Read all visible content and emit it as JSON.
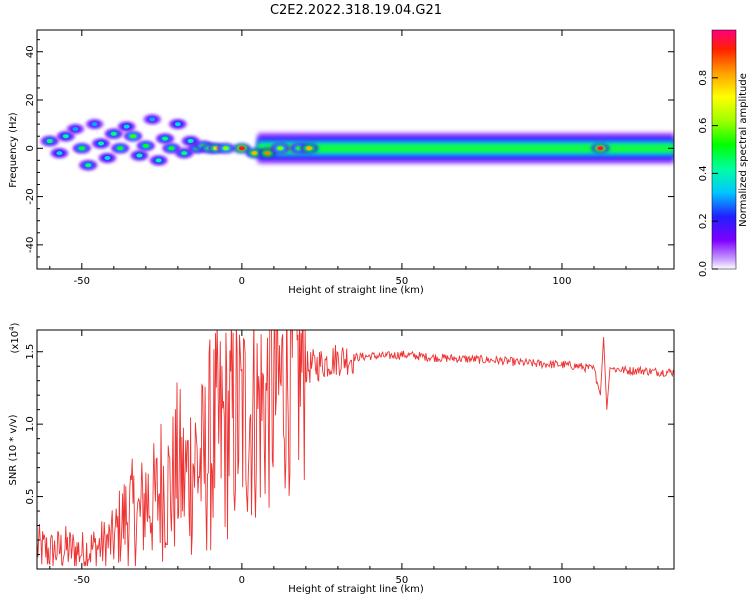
{
  "title": "C2E2.2022.318.19.04.G21",
  "chart_data": [
    {
      "type": "heatmap",
      "xlabel": "Height of straight line (km)",
      "ylabel": "Frequency (Hz)",
      "xlim": [
        -64,
        135
      ],
      "ylim": [
        -50,
        49
      ],
      "xticks": [
        -50,
        0,
        50,
        100
      ],
      "yticks": [
        -40,
        -20,
        0,
        20,
        40
      ],
      "colorbar": {
        "label": "Normalized spectral amplitude",
        "range": [
          0,
          1
        ],
        "ticks": [
          0.0,
          0.2,
          0.4,
          0.6,
          0.8
        ],
        "colormap": "rainbow"
      },
      "blobs": [
        {
          "x": -60,
          "y": 3,
          "v": 0.45
        },
        {
          "x": -57,
          "y": -2,
          "v": 0.35
        },
        {
          "x": -55,
          "y": 5,
          "v": 0.4
        },
        {
          "x": -52,
          "y": 8,
          "v": 0.3
        },
        {
          "x": -50,
          "y": 0,
          "v": 0.5
        },
        {
          "x": -48,
          "y": -7,
          "v": 0.45
        },
        {
          "x": -46,
          "y": 10,
          "v": 0.3
        },
        {
          "x": -44,
          "y": 2,
          "v": 0.4
        },
        {
          "x": -42,
          "y": -4,
          "v": 0.35
        },
        {
          "x": -40,
          "y": 6,
          "v": 0.45
        },
        {
          "x": -38,
          "y": 0,
          "v": 0.5
        },
        {
          "x": -36,
          "y": 9,
          "v": 0.35
        },
        {
          "x": -34,
          "y": 5,
          "v": 0.55
        },
        {
          "x": -32,
          "y": -3,
          "v": 0.4
        },
        {
          "x": -30,
          "y": 1,
          "v": 0.5
        },
        {
          "x": -28,
          "y": 12,
          "v": 0.3
        },
        {
          "x": -26,
          "y": -5,
          "v": 0.4
        },
        {
          "x": -24,
          "y": 4,
          "v": 0.45
        },
        {
          "x": -22,
          "y": 0,
          "v": 0.5
        },
        {
          "x": -20,
          "y": 10,
          "v": 0.35
        },
        {
          "x": -18,
          "y": -2,
          "v": 0.45
        },
        {
          "x": -16,
          "y": 3,
          "v": 0.4
        },
        {
          "x": -14,
          "y": 0,
          "v": 0.5
        },
        {
          "x": -12,
          "y": 1,
          "v": 0.55
        },
        {
          "x": -10,
          "y": 0,
          "v": 0.7
        },
        {
          "x": -8,
          "y": 0,
          "v": 0.75
        },
        {
          "x": -5,
          "y": 0,
          "v": 0.6
        },
        {
          "x": 0,
          "y": 0,
          "v": 0.95
        },
        {
          "x": 4,
          "y": -2,
          "v": 0.8
        },
        {
          "x": 8,
          "y": -2,
          "v": 0.85
        },
        {
          "x": 12,
          "y": 0,
          "v": 0.6
        },
        {
          "x": 18,
          "y": 0,
          "v": 0.55
        },
        {
          "x": 21,
          "y": 0,
          "v": 0.8
        },
        {
          "x": 112,
          "y": 0,
          "v": 0.95
        }
      ],
      "band": {
        "x_start": 5,
        "x_end": 135,
        "center_hz": 0,
        "half_width_hz": 4,
        "core_value": 0.55
      }
    },
    {
      "type": "line",
      "xlabel": "Height of straight line (km)",
      "ylabel": "SNR (10 * v/v)",
      "y_scale_note": "(x10",
      "y_scale_exp": "4",
      "y_scale_close": ")",
      "xlim": [
        -64,
        135
      ],
      "ylim": [
        0,
        1.65
      ],
      "xticks": [
        -50,
        0,
        50,
        100
      ],
      "yticks": [
        0.5,
        1.0,
        1.5
      ],
      "series": [
        {
          "color": "#ee3333",
          "x": [
            -64,
            -60,
            -55,
            -50,
            -45,
            -40,
            -38,
            -35,
            -32,
            -30,
            -27,
            -25,
            -22,
            -20,
            -18,
            -15,
            -12,
            -10,
            -8,
            -6,
            -3,
            0,
            3,
            6,
            8,
            10,
            12,
            14,
            16,
            18,
            20,
            22,
            25,
            28,
            30,
            35,
            40,
            45,
            50,
            55,
            60,
            70,
            80,
            90,
            100,
            105,
            110,
            112,
            113,
            114,
            115,
            116,
            118,
            120,
            125,
            130,
            135
          ],
          "y": [
            0.15,
            0.12,
            0.14,
            0.12,
            0.15,
            0.2,
            0.3,
            0.4,
            0.35,
            0.5,
            0.45,
            0.6,
            0.55,
            0.7,
            0.6,
            0.75,
            0.7,
            0.85,
            0.9,
            0.95,
            1.0,
            1.05,
            1.08,
            1.12,
            1.15,
            1.2,
            1.25,
            1.3,
            1.32,
            1.35,
            1.38,
            1.4,
            1.42,
            1.44,
            1.45,
            1.46,
            1.47,
            1.47,
            1.48,
            1.47,
            1.46,
            1.45,
            1.44,
            1.42,
            1.41,
            1.4,
            1.38,
            1.2,
            1.6,
            1.1,
            1.39,
            1.38,
            1.38,
            1.37,
            1.37,
            1.36,
            1.36
          ]
        }
      ]
    }
  ]
}
